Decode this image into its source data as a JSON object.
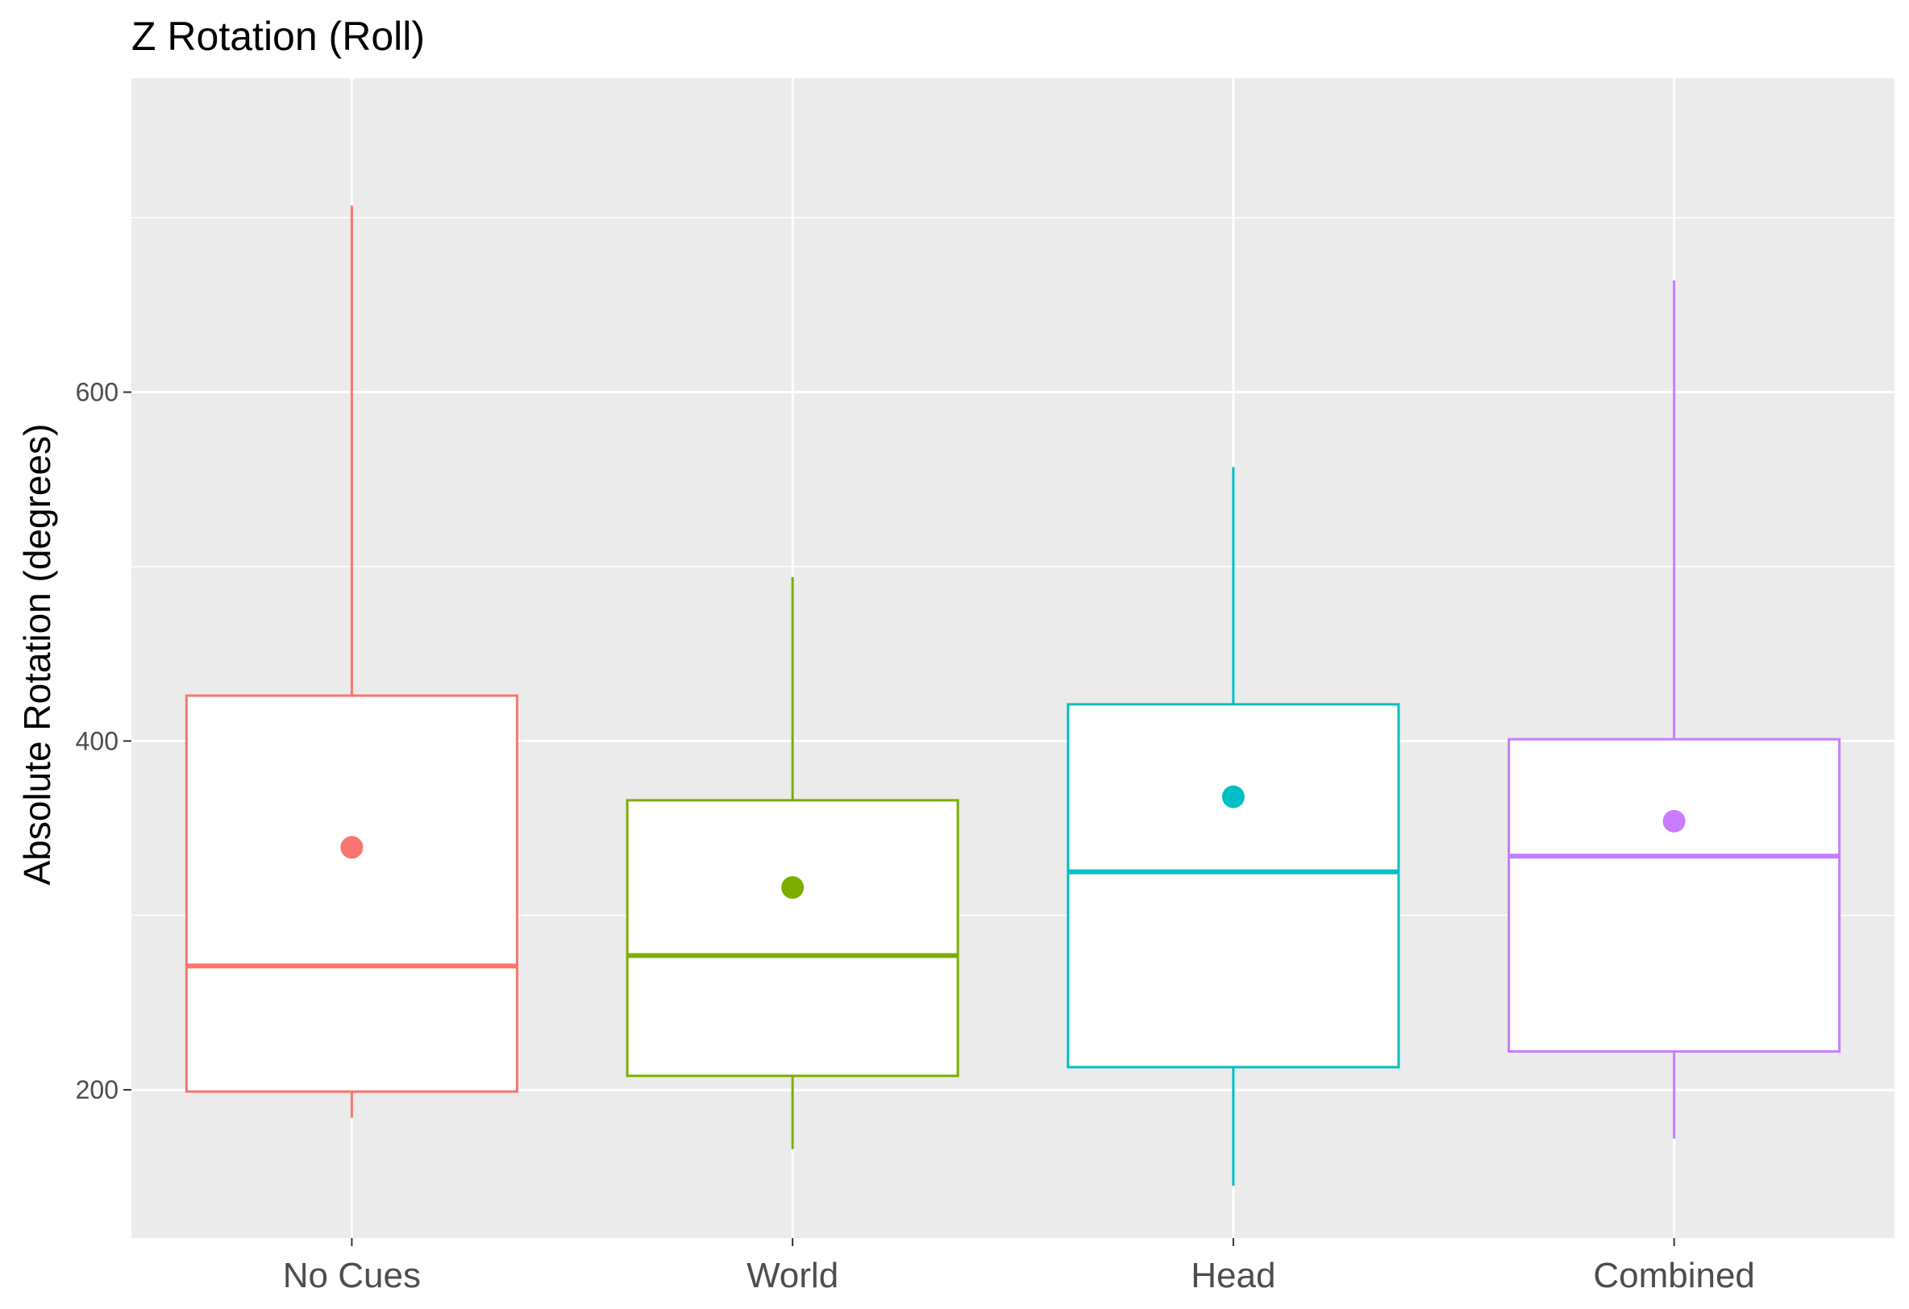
{
  "chart_data": {
    "type": "boxplot",
    "title": "Z Rotation (Roll)",
    "xlabel": "",
    "ylabel": "Absolute Rotation (degrees)",
    "ylim": [
      115,
      780
    ],
    "y_ticks": [
      200,
      400,
      600
    ],
    "grid": true,
    "legend": "none",
    "panel_background": "#ebebeb",
    "grid_color": "#ffffff",
    "tick_color": "#333333",
    "categories": [
      "No Cues",
      "World",
      "Head",
      "Combined"
    ],
    "series": [
      {
        "category": "No Cues",
        "color": "#f8766d",
        "whisker_low": 184,
        "q1": 199,
        "median": 271,
        "q3": 426,
        "whisker_high": 707,
        "mean": 339
      },
      {
        "category": "World",
        "color": "#7cae00",
        "whisker_low": 166,
        "q1": 208,
        "median": 277,
        "q3": 366,
        "whisker_high": 494,
        "mean": 316
      },
      {
        "category": "Head",
        "color": "#00bfc4",
        "whisker_low": 145,
        "q1": 213,
        "median": 325,
        "q3": 421,
        "whisker_high": 557,
        "mean": 368
      },
      {
        "category": "Combined",
        "color": "#c77cff",
        "whisker_low": 172,
        "q1": 222,
        "median": 334,
        "q3": 401,
        "whisker_high": 664,
        "mean": 354
      }
    ]
  }
}
